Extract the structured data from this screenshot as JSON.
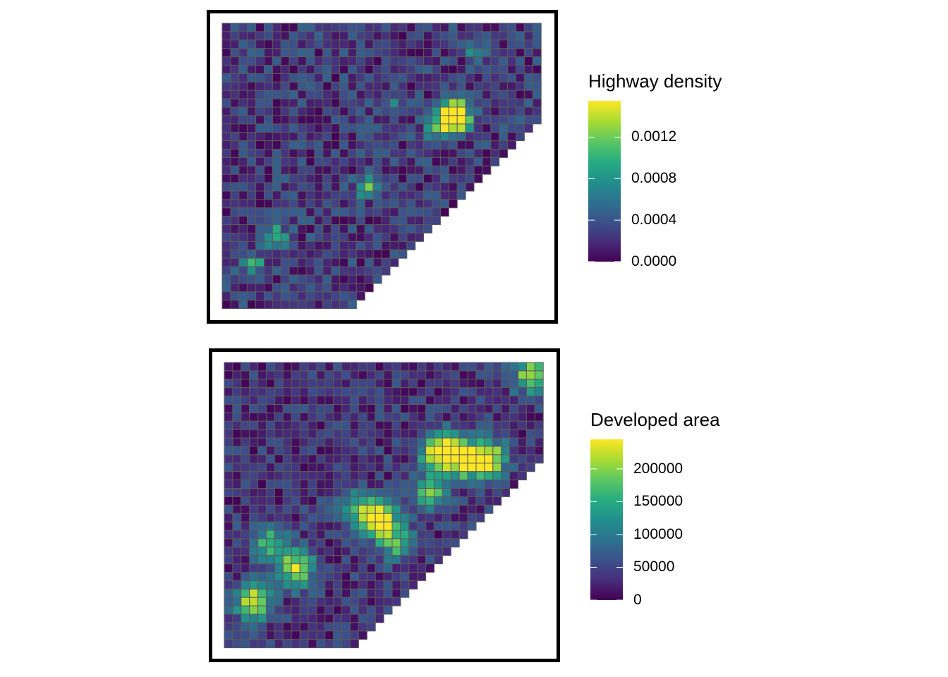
{
  "maps": [
    {
      "id": "highway",
      "legend": {
        "title": "Highway density",
        "colors": [
          "#440154",
          "#472D7B",
          "#3B528B",
          "#2C728E",
          "#21908C",
          "#27AD81",
          "#5DC863",
          "#AADC32",
          "#FDE725"
        ],
        "ticks": [
          {
            "label": "0.0000",
            "value": 0.0
          },
          {
            "label": "0.0004",
            "value": 0.0004
          },
          {
            "label": "0.0008",
            "value": 0.0008
          },
          {
            "label": "0.0012",
            "value": 0.0012
          }
        ],
        "min": 0.0,
        "max": 0.00155
      }
    },
    {
      "id": "developed",
      "legend": {
        "title": "Developed area",
        "colors": [
          "#440154",
          "#472D7B",
          "#3B528B",
          "#2C728E",
          "#21908C",
          "#27AD81",
          "#5DC863",
          "#AADC32",
          "#FDE725"
        ],
        "ticks": [
          {
            "label": "0",
            "value": 0
          },
          {
            "label": "50000",
            "value": 50000
          },
          {
            "label": "100000",
            "value": 100000
          },
          {
            "label": "150000",
            "value": 150000
          },
          {
            "label": "200000",
            "value": 200000
          }
        ],
        "min": 0,
        "max": 245000
      }
    }
  ]
}
